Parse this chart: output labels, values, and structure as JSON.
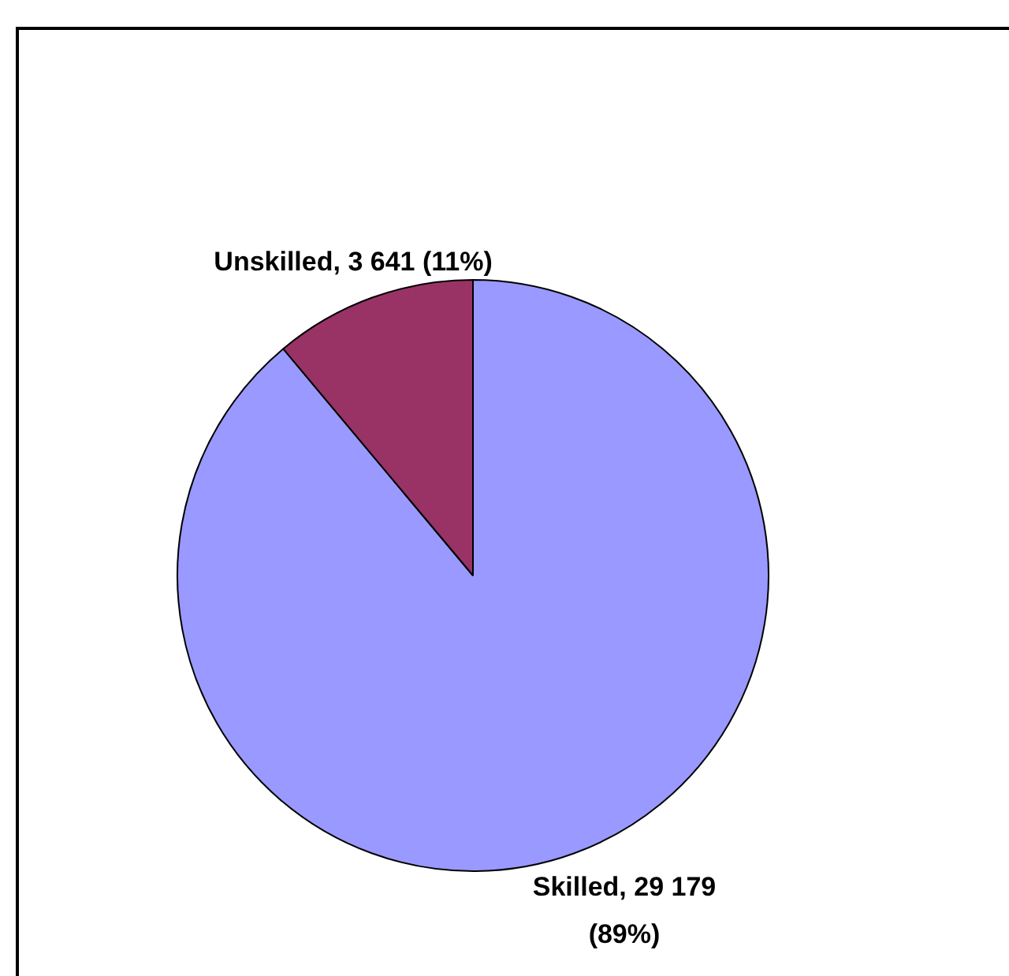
{
  "chart_data": {
    "type": "pie",
    "categories": [
      "Skilled",
      "Unskilled"
    ],
    "values": [
      29179,
      3641
    ],
    "colors": [
      "#9999ff",
      "#993366"
    ],
    "value_labels": [
      "29 179 (89%)",
      "3 641 (11%)"
    ],
    "legend": false
  }
}
